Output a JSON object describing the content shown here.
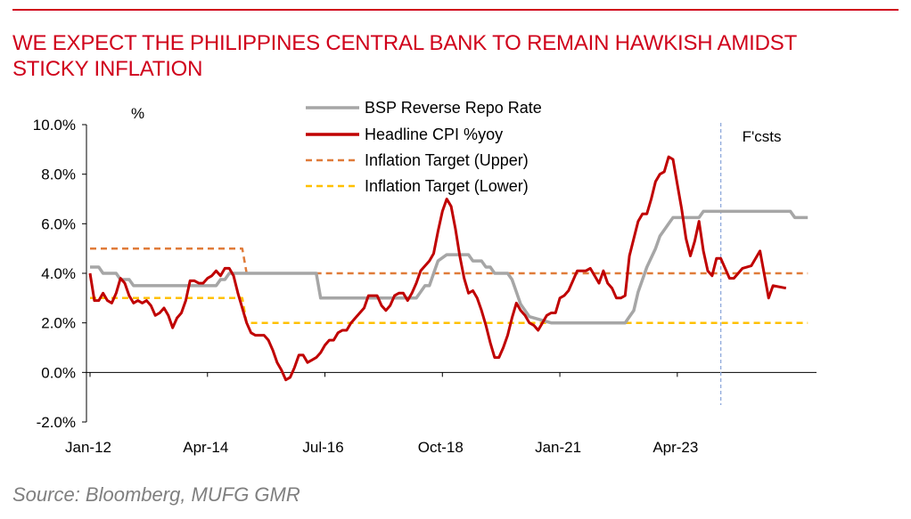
{
  "header": {
    "title_line1": "WE EXPECT THE PHILIPPINES CENTRAL BANK TO REMAIN HAWKISH AMIDST",
    "title_line2": "STICKY INFLATION",
    "accent_color": "#d0021b"
  },
  "footer": {
    "source": "Source: Bloomberg, MUFG GMR"
  },
  "chart_data": {
    "type": "line",
    "ylabel": "%",
    "ylim": [
      -2,
      10
    ],
    "y_ticks": [
      "-2.0%",
      "0.0%",
      "2.0%",
      "4.0%",
      "6.0%",
      "8.0%",
      "10.0%"
    ],
    "y_tick_values": [
      -2,
      0,
      2,
      4,
      6,
      8,
      10
    ],
    "x_tick_labels": [
      "Jan-12",
      "Apr-14",
      "Jul-16",
      "Oct-18",
      "Jan-21",
      "Apr-23"
    ],
    "x_tick_values": [
      "2012-01",
      "2014-04",
      "2016-07",
      "2018-10",
      "2021-01",
      "2023-04"
    ],
    "xlim": [
      "2012-01",
      "2025-12"
    ],
    "forecast_start": "2024-02",
    "forecast_label": "F'csts",
    "legend_placement": "top-center",
    "grid": false,
    "series": [
      {
        "name": "BSP Reverse Repo Rate",
        "color": "#a6a6a6",
        "style": "solid",
        "points": [
          [
            "2012-01",
            4.25
          ],
          [
            "2012-03",
            4.25
          ],
          [
            "2012-04",
            4.0
          ],
          [
            "2012-07",
            4.0
          ],
          [
            "2012-08",
            3.75
          ],
          [
            "2012-10",
            3.75
          ],
          [
            "2012-11",
            3.5
          ],
          [
            "2014-06",
            3.5
          ],
          [
            "2014-07",
            3.75
          ],
          [
            "2014-08",
            3.75
          ],
          [
            "2014-09",
            4.0
          ],
          [
            "2016-05",
            4.0
          ],
          [
            "2016-06",
            3.0
          ],
          [
            "2018-04",
            3.0
          ],
          [
            "2018-05",
            3.25
          ],
          [
            "2018-06",
            3.5
          ],
          [
            "2018-07",
            3.5
          ],
          [
            "2018-08",
            4.0
          ],
          [
            "2018-09",
            4.5
          ],
          [
            "2018-11",
            4.75
          ],
          [
            "2019-04",
            4.75
          ],
          [
            "2019-05",
            4.5
          ],
          [
            "2019-07",
            4.5
          ],
          [
            "2019-08",
            4.25
          ],
          [
            "2019-09",
            4.25
          ],
          [
            "2019-10",
            4.0
          ],
          [
            "2020-01",
            4.0
          ],
          [
            "2020-02",
            3.75
          ],
          [
            "2020-03",
            3.25
          ],
          [
            "2020-04",
            2.75
          ],
          [
            "2020-06",
            2.25
          ],
          [
            "2020-11",
            2.0
          ],
          [
            "2022-04",
            2.0
          ],
          [
            "2022-05",
            2.25
          ],
          [
            "2022-06",
            2.5
          ],
          [
            "2022-07",
            3.25
          ],
          [
            "2022-08",
            3.75
          ],
          [
            "2022-09",
            4.25
          ],
          [
            "2022-11",
            5.0
          ],
          [
            "2022-12",
            5.5
          ],
          [
            "2023-02",
            6.0
          ],
          [
            "2023-03",
            6.25
          ],
          [
            "2023-09",
            6.25
          ],
          [
            "2023-10",
            6.5
          ],
          [
            "2025-06",
            6.5
          ],
          [
            "2025-07",
            6.25
          ],
          [
            "2025-10",
            6.25
          ]
        ]
      },
      {
        "name": "Headline CPI %yoy",
        "color": "#c00000",
        "style": "solid",
        "points": [
          [
            "2012-01",
            4.0
          ],
          [
            "2012-02",
            2.9
          ],
          [
            "2012-03",
            2.9
          ],
          [
            "2012-04",
            3.2
          ],
          [
            "2012-05",
            2.9
          ],
          [
            "2012-06",
            2.8
          ],
          [
            "2012-07",
            3.2
          ],
          [
            "2012-08",
            3.8
          ],
          [
            "2012-09",
            3.6
          ],
          [
            "2012-10",
            3.1
          ],
          [
            "2012-11",
            2.8
          ],
          [
            "2012-12",
            2.9
          ],
          [
            "2013-01",
            2.8
          ],
          [
            "2013-02",
            2.9
          ],
          [
            "2013-03",
            2.7
          ],
          [
            "2013-04",
            2.3
          ],
          [
            "2013-05",
            2.4
          ],
          [
            "2013-06",
            2.6
          ],
          [
            "2013-07",
            2.3
          ],
          [
            "2013-08",
            1.8
          ],
          [
            "2013-09",
            2.2
          ],
          [
            "2013-10",
            2.4
          ],
          [
            "2013-11",
            2.9
          ],
          [
            "2013-12",
            3.7
          ],
          [
            "2014-01",
            3.7
          ],
          [
            "2014-02",
            3.6
          ],
          [
            "2014-03",
            3.6
          ],
          [
            "2014-04",
            3.8
          ],
          [
            "2014-05",
            3.9
          ],
          [
            "2014-06",
            4.1
          ],
          [
            "2014-07",
            3.9
          ],
          [
            "2014-08",
            4.2
          ],
          [
            "2014-09",
            4.2
          ],
          [
            "2014-10",
            3.9
          ],
          [
            "2014-11",
            3.2
          ],
          [
            "2014-12",
            2.6
          ],
          [
            "2015-01",
            2.0
          ],
          [
            "2015-02",
            1.6
          ],
          [
            "2015-03",
            1.5
          ],
          [
            "2015-05",
            1.5
          ],
          [
            "2015-06",
            1.3
          ],
          [
            "2015-07",
            0.9
          ],
          [
            "2015-08",
            0.4
          ],
          [
            "2015-09",
            0.1
          ],
          [
            "2015-10",
            -0.3
          ],
          [
            "2015-11",
            -0.2
          ],
          [
            "2015-12",
            0.2
          ],
          [
            "2016-01",
            0.7
          ],
          [
            "2016-02",
            0.7
          ],
          [
            "2016-03",
            0.4
          ],
          [
            "2016-04",
            0.5
          ],
          [
            "2016-05",
            0.6
          ],
          [
            "2016-06",
            0.8
          ],
          [
            "2016-07",
            1.1
          ],
          [
            "2016-08",
            1.3
          ],
          [
            "2016-09",
            1.3
          ],
          [
            "2016-10",
            1.6
          ],
          [
            "2016-11",
            1.7
          ],
          [
            "2016-12",
            1.7
          ],
          [
            "2017-01",
            2.0
          ],
          [
            "2017-02",
            2.2
          ],
          [
            "2017-03",
            2.4
          ],
          [
            "2017-04",
            2.6
          ],
          [
            "2017-05",
            3.1
          ],
          [
            "2017-06",
            3.1
          ],
          [
            "2017-07",
            3.1
          ],
          [
            "2017-08",
            2.7
          ],
          [
            "2017-09",
            2.5
          ],
          [
            "2017-10",
            2.7
          ],
          [
            "2017-11",
            3.1
          ],
          [
            "2017-12",
            3.2
          ],
          [
            "2018-01",
            3.2
          ],
          [
            "2018-02",
            2.9
          ],
          [
            "2018-03",
            3.2
          ],
          [
            "2018-04",
            3.6
          ],
          [
            "2018-05",
            4.1
          ],
          [
            "2018-06",
            4.3
          ],
          [
            "2018-07",
            4.5
          ],
          [
            "2018-08",
            4.8
          ],
          [
            "2018-09",
            5.7
          ],
          [
            "2018-10",
            6.5
          ],
          [
            "2018-11",
            7.0
          ],
          [
            "2018-12",
            6.7
          ],
          [
            "2019-01",
            5.8
          ],
          [
            "2019-02",
            4.7
          ],
          [
            "2019-03",
            3.8
          ],
          [
            "2019-04",
            3.2
          ],
          [
            "2019-05",
            3.3
          ],
          [
            "2019-06",
            3.0
          ],
          [
            "2019-07",
            2.5
          ],
          [
            "2019-08",
            1.9
          ],
          [
            "2019-09",
            1.2
          ],
          [
            "2019-10",
            0.6
          ],
          [
            "2019-11",
            0.6
          ],
          [
            "2019-12",
            1.0
          ],
          [
            "2020-01",
            1.5
          ],
          [
            "2020-02",
            2.2
          ],
          [
            "2020-03",
            2.8
          ],
          [
            "2020-04",
            2.5
          ],
          [
            "2020-05",
            2.3
          ],
          [
            "2020-06",
            2.0
          ],
          [
            "2020-07",
            1.9
          ],
          [
            "2020-08",
            1.7
          ],
          [
            "2020-09",
            2.0
          ],
          [
            "2020-10",
            2.3
          ],
          [
            "2020-11",
            2.4
          ],
          [
            "2020-12",
            2.4
          ],
          [
            "2021-01",
            3.0
          ],
          [
            "2021-02",
            3.1
          ],
          [
            "2021-03",
            3.3
          ],
          [
            "2021-04",
            3.7
          ],
          [
            "2021-05",
            4.1
          ],
          [
            "2021-06",
            4.1
          ],
          [
            "2021-07",
            4.1
          ],
          [
            "2021-08",
            4.2
          ],
          [
            "2021-09",
            3.9
          ],
          [
            "2021-10",
            3.6
          ],
          [
            "2021-11",
            4.1
          ],
          [
            "2021-12",
            3.6
          ],
          [
            "2022-01",
            3.4
          ],
          [
            "2022-02",
            3.0
          ],
          [
            "2022-03",
            3.0
          ],
          [
            "2022-04",
            3.1
          ],
          [
            "2022-05",
            4.7
          ],
          [
            "2022-06",
            5.4
          ],
          [
            "2022-07",
            6.1
          ],
          [
            "2022-08",
            6.4
          ],
          [
            "2022-09",
            6.4
          ],
          [
            "2022-10",
            7.0
          ],
          [
            "2022-11",
            7.7
          ],
          [
            "2022-12",
            8.0
          ],
          [
            "2023-01",
            8.1
          ],
          [
            "2023-02",
            8.7
          ],
          [
            "2023-03",
            8.6
          ],
          [
            "2023-04",
            7.6
          ],
          [
            "2023-05",
            6.6
          ],
          [
            "2023-06",
            5.4
          ],
          [
            "2023-07",
            4.7
          ],
          [
            "2023-08",
            5.3
          ],
          [
            "2023-09",
            6.1
          ],
          [
            "2023-10",
            4.9
          ],
          [
            "2023-11",
            4.1
          ],
          [
            "2023-12",
            3.9
          ],
          [
            "2024-01",
            4.6
          ],
          [
            "2024-02",
            4.6
          ],
          [
            "2024-04",
            3.8
          ],
          [
            "2024-05",
            3.8
          ],
          [
            "2024-07",
            4.2
          ],
          [
            "2024-09",
            4.3
          ],
          [
            "2024-11",
            4.9
          ],
          [
            "2025-01",
            3.0
          ],
          [
            "2025-02",
            3.5
          ],
          [
            "2025-05",
            3.4
          ]
        ]
      },
      {
        "name": "Inflation Target (Upper)",
        "color": "#e07b39",
        "style": "dashed",
        "points": [
          [
            "2012-01",
            5.0
          ],
          [
            "2014-12",
            5.0
          ],
          [
            "2015-01",
            4.0
          ],
          [
            "2025-10",
            4.0
          ]
        ]
      },
      {
        "name": "Inflation Target (Lower)",
        "color": "#ffc000",
        "style": "dashed",
        "points": [
          [
            "2012-01",
            3.0
          ],
          [
            "2014-12",
            3.0
          ],
          [
            "2015-01",
            2.0
          ],
          [
            "2025-10",
            2.0
          ]
        ]
      }
    ]
  }
}
